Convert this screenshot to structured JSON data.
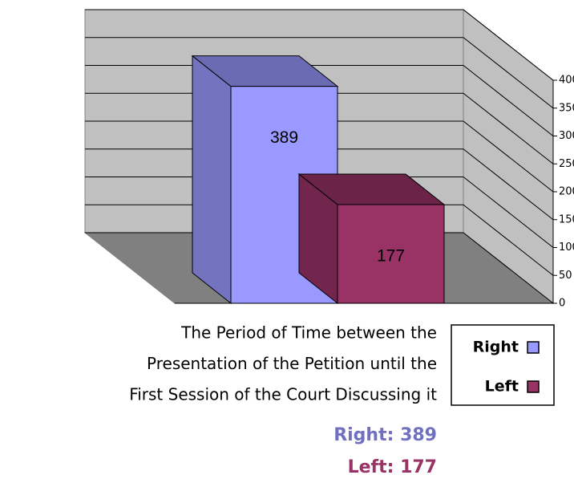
{
  "chart_data": {
    "type": "bar3d",
    "title_lines": [
      "The Period of Time between the",
      "Presentation of the Petition until the",
      "First Session of the Court Discussing it"
    ],
    "series": [
      {
        "name": "Right",
        "color": "#9999ff",
        "values": [
          389
        ]
      },
      {
        "name": "Left",
        "color": "#993366",
        "values": [
          177
        ]
      }
    ],
    "summary": [
      {
        "text": "Right: 389",
        "color": "#7070c0"
      },
      {
        "text": "Left: 177",
        "color": "#993366"
      }
    ],
    "ylim": [
      0,
      400
    ],
    "yticks": [
      0,
      50,
      100,
      150,
      200,
      250,
      300,
      350,
      400
    ],
    "grid": true,
    "legend": "right"
  }
}
